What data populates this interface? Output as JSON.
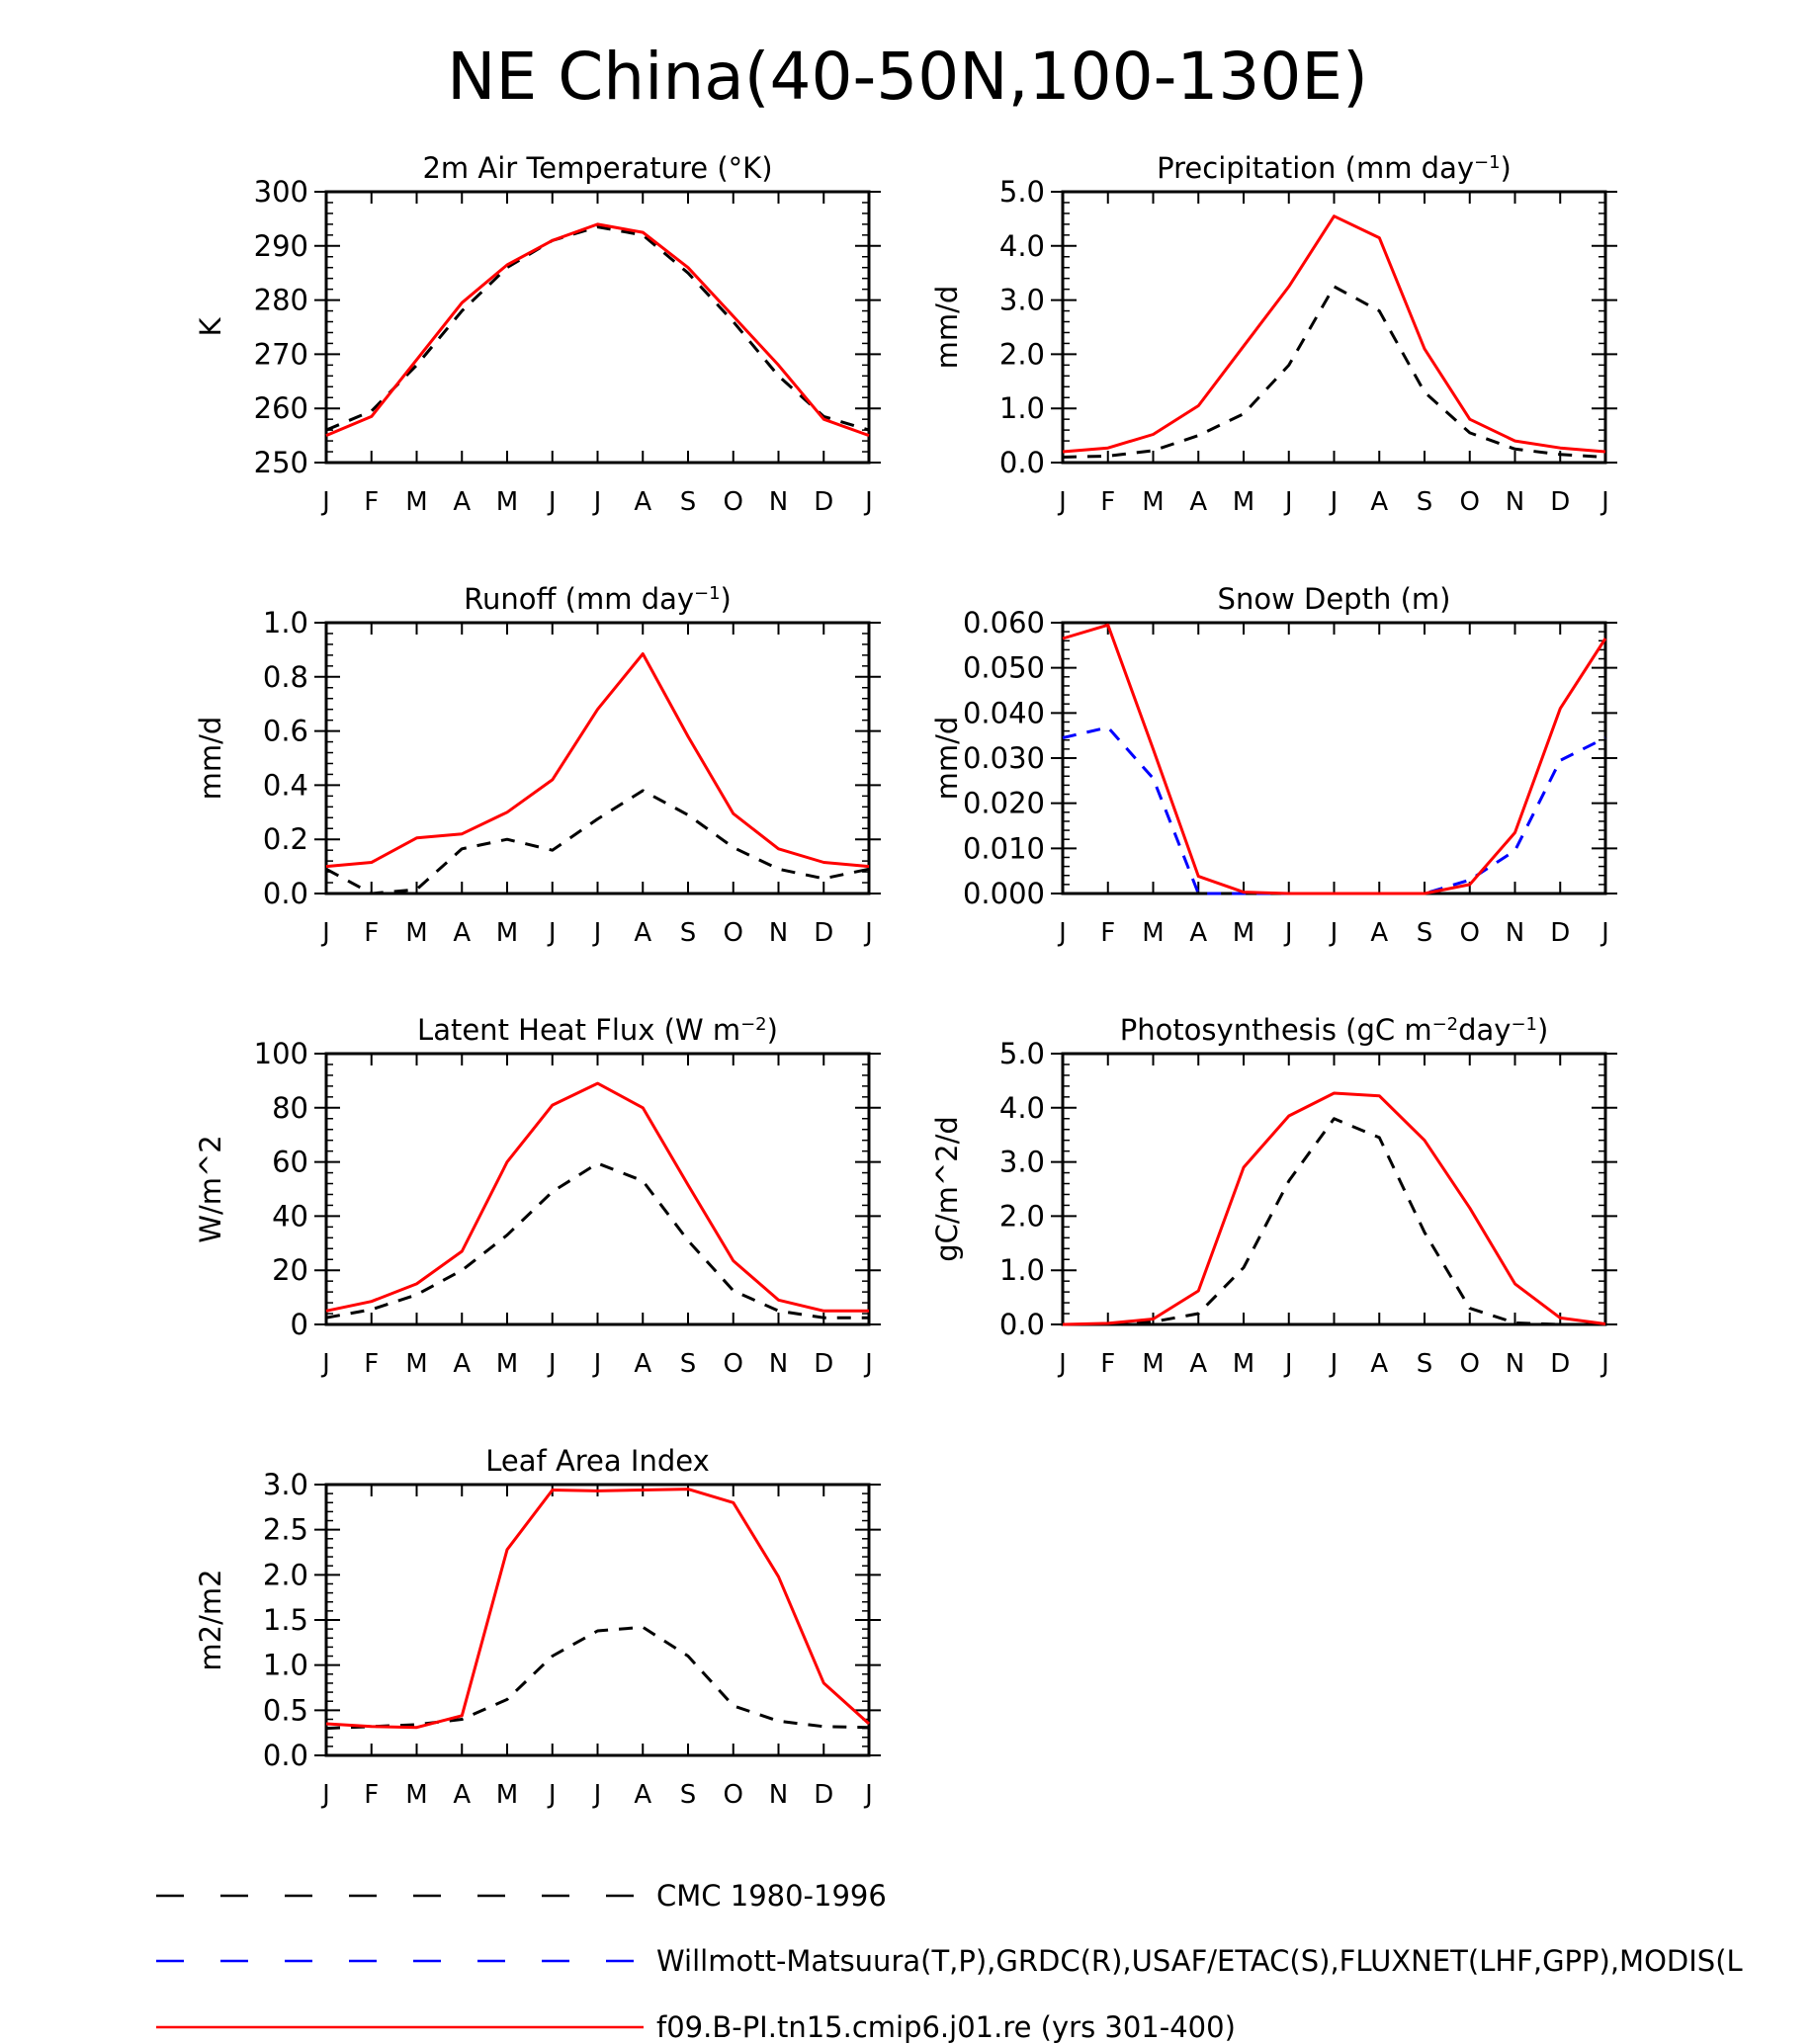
{
  "title": "NE China(40-50N,100-130E)",
  "months": [
    "J",
    "F",
    "M",
    "A",
    "M",
    "J",
    "J",
    "A",
    "S",
    "O",
    "N",
    "D",
    "J"
  ],
  "legend": [
    {
      "label": "CMC 1980-1996",
      "color": "#000000",
      "dash": "dashed"
    },
    {
      "label": "Willmott-Matsuura(T,P),GRDC(R),USAF/ETAC(S),FLUXNET(LHF,GPP),MODIS(L",
      "color": "#0000ff",
      "dash": "dashed"
    },
    {
      "label": "f09.B-PI.tn15.cmip6.j01.re (yrs 301-400)",
      "color": "#ff0000",
      "dash": "solid"
    }
  ],
  "chart_data": [
    {
      "type": "line",
      "title": "2m Air Temperature (°K)",
      "ylabel": "K",
      "ylim": [
        250,
        300
      ],
      "yticks": [
        250,
        260,
        270,
        280,
        290,
        300
      ],
      "yticklabels": [
        "250",
        "260",
        "270",
        "280",
        "290",
        "300"
      ],
      "series": [
        {
          "name": "CMC 1980-1996",
          "color": "#000000",
          "dash": "dashed",
          "values": [
            256,
            259.5,
            268,
            278,
            286,
            291,
            293.5,
            292,
            285,
            276,
            266,
            258.5,
            256
          ]
        },
        {
          "name": "f09.B-PI.tn15.cmip6.j01.re (yrs 301-400)",
          "color": "#ff0000",
          "dash": "solid",
          "values": [
            255,
            258.5,
            269,
            279.5,
            286.5,
            291,
            294,
            292.5,
            286,
            277,
            268,
            258,
            255
          ]
        }
      ]
    },
    {
      "type": "line",
      "title": "Precipitation (mm day⁻¹)",
      "ylabel": "mm/d",
      "ylim": [
        0,
        5
      ],
      "yticks": [
        0,
        1,
        2,
        3,
        4,
        5
      ],
      "yticklabels": [
        "0.0",
        "1.0",
        "2.0",
        "3.0",
        "4.0",
        "5.0"
      ],
      "series": [
        {
          "name": "CMC 1980-1996",
          "color": "#000000",
          "dash": "dashed",
          "values": [
            0.1,
            0.12,
            0.22,
            0.5,
            0.9,
            1.8,
            3.25,
            2.8,
            1.3,
            0.55,
            0.25,
            0.15,
            0.1
          ]
        },
        {
          "name": "f09.B-PI.tn15.cmip6.j01.re (yrs 301-400)",
          "color": "#ff0000",
          "dash": "solid",
          "values": [
            0.2,
            0.27,
            0.52,
            1.05,
            2.15,
            3.25,
            4.55,
            4.15,
            2.1,
            0.8,
            0.4,
            0.27,
            0.2
          ]
        }
      ]
    },
    {
      "type": "line",
      "title": "Runoff (mm day⁻¹)",
      "ylabel": "mm/d",
      "ylim": [
        0,
        1
      ],
      "yticks": [
        0,
        0.2,
        0.4,
        0.6,
        0.8,
        1.0
      ],
      "yticklabels": [
        "0.0",
        "0.2",
        "0.4",
        "0.6",
        "0.8",
        "1.0"
      ],
      "series": [
        {
          "name": "CMC 1980-1996",
          "color": "#000000",
          "dash": "dashed",
          "values": [
            0.09,
            0.0,
            0.015,
            0.165,
            0.2,
            0.16,
            0.275,
            0.38,
            0.29,
            0.17,
            0.09,
            0.055,
            0.09
          ]
        },
        {
          "name": "f09.B-PI.tn15.cmip6.j01.re (yrs 301-400)",
          "color": "#ff0000",
          "dash": "solid",
          "values": [
            0.1,
            0.115,
            0.205,
            0.22,
            0.3,
            0.42,
            0.68,
            0.885,
            0.58,
            0.295,
            0.165,
            0.115,
            0.1
          ]
        }
      ]
    },
    {
      "type": "line",
      "title": "Snow Depth (m)",
      "ylabel": "mm/d",
      "ylim": [
        0,
        0.06
      ],
      "yticks": [
        0,
        0.01,
        0.02,
        0.03,
        0.04,
        0.05,
        0.06
      ],
      "yticklabels": [
        "0.000",
        "0.010",
        "0.020",
        "0.030",
        "0.040",
        "0.050",
        "0.060"
      ],
      "series": [
        {
          "name": "CMC 1980-1996",
          "color": "#000000",
          "dash": "dashed",
          "values": [
            0,
            0,
            0,
            0,
            0,
            0,
            0,
            0,
            0,
            0,
            0,
            0,
            0
          ]
        },
        {
          "name": "Willmott-Matsuura(T,P),GRDC(R),USAF/ETAC(S),FLUXNET(LHF,GPP),MODIS(L",
          "color": "#0000ff",
          "dash": "dashed",
          "values": [
            0.0345,
            0.0368,
            0.0255,
            0.0,
            0.0,
            0.0,
            0.0,
            0.0,
            0.0,
            0.003,
            0.0095,
            0.0295,
            0.0345
          ]
        },
        {
          "name": "f09.B-PI.tn15.cmip6.j01.re (yrs 301-400)",
          "color": "#ff0000",
          "dash": "solid",
          "values": [
            0.0565,
            0.0595,
            0.032,
            0.0038,
            0.0003,
            0.0,
            0.0,
            0.0,
            0.0,
            0.002,
            0.0135,
            0.041,
            0.0565
          ]
        }
      ]
    },
    {
      "type": "line",
      "title": "Latent Heat Flux (W m⁻²)",
      "ylabel": "W/m^2",
      "ylim": [
        0,
        100
      ],
      "yticks": [
        0,
        20,
        40,
        60,
        80,
        100
      ],
      "yticklabels": [
        "0",
        "20",
        "40",
        "60",
        "80",
        "100"
      ],
      "series": [
        {
          "name": "CMC 1980-1996",
          "color": "#000000",
          "dash": "dashed",
          "values": [
            2.5,
            5.5,
            11,
            20,
            33,
            49,
            59.5,
            53,
            31,
            12.5,
            5,
            2.5,
            2.5
          ]
        },
        {
          "name": "f09.B-PI.tn15.cmip6.j01.re (yrs 301-400)",
          "color": "#ff0000",
          "dash": "solid",
          "values": [
            5,
            8.5,
            15,
            27,
            60,
            81,
            89,
            80,
            51.5,
            23.5,
            9,
            5,
            5
          ]
        }
      ]
    },
    {
      "type": "line",
      "title": "Photosynthesis (gC m⁻²day⁻¹)",
      "ylabel": "gC/m^2/d",
      "ylim": [
        0,
        5
      ],
      "yticks": [
        0,
        1,
        2,
        3,
        4,
        5
      ],
      "yticklabels": [
        "0.0",
        "1.0",
        "2.0",
        "3.0",
        "4.0",
        "5.0"
      ],
      "series": [
        {
          "name": "CMC 1980-1996",
          "color": "#000000",
          "dash": "dashed",
          "values": [
            0,
            0,
            0.05,
            0.2,
            1.05,
            2.65,
            3.8,
            3.45,
            1.7,
            0.3,
            0.03,
            0,
            0
          ]
        },
        {
          "name": "f09.B-PI.tn15.cmip6.j01.re (yrs 301-400)",
          "color": "#ff0000",
          "dash": "solid",
          "values": [
            0,
            0.02,
            0.1,
            0.62,
            2.9,
            3.85,
            4.27,
            4.22,
            3.4,
            2.15,
            0.75,
            0.12,
            0.01
          ]
        }
      ]
    },
    {
      "type": "line",
      "title": "Leaf Area Index",
      "ylabel": "m2/m2",
      "ylim": [
        0,
        3
      ],
      "yticks": [
        0,
        0.5,
        1,
        1.5,
        2,
        2.5,
        3
      ],
      "yticklabels": [
        "0.0",
        "0.5",
        "1.0",
        "1.5",
        "2.0",
        "2.5",
        "3.0"
      ],
      "series": [
        {
          "name": "CMC 1980-1996",
          "color": "#000000",
          "dash": "dashed",
          "values": [
            0.3,
            0.32,
            0.34,
            0.4,
            0.62,
            1.1,
            1.38,
            1.42,
            1.1,
            0.55,
            0.38,
            0.32,
            0.31
          ]
        },
        {
          "name": "f09.B-PI.tn15.cmip6.j01.re (yrs 301-400)",
          "color": "#ff0000",
          "dash": "solid",
          "values": [
            0.35,
            0.32,
            0.31,
            0.44,
            2.28,
            2.94,
            2.93,
            2.94,
            2.95,
            2.8,
            1.98,
            0.8,
            0.35
          ]
        }
      ]
    }
  ]
}
